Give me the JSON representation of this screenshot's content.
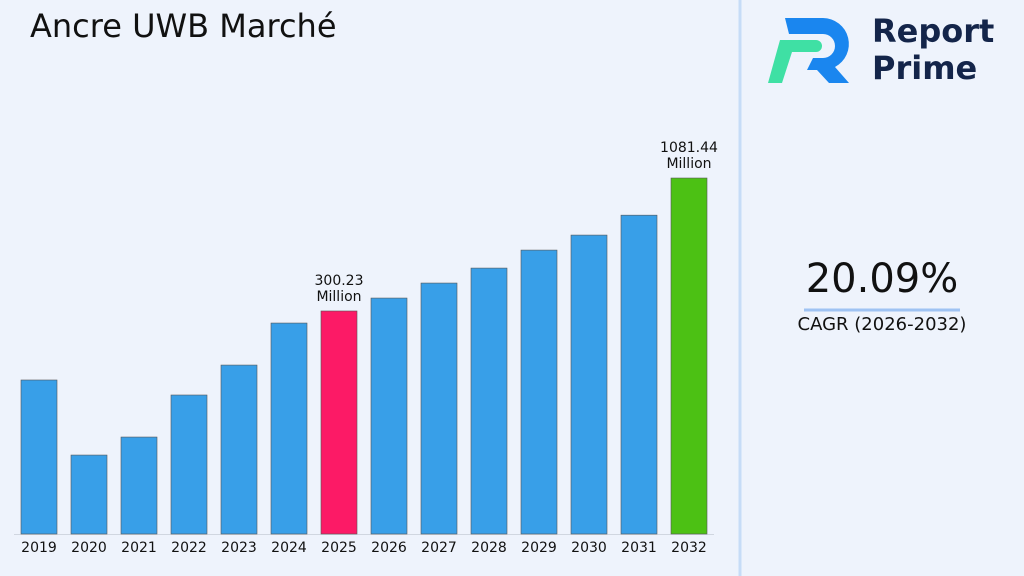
{
  "chart_data": {
    "type": "bar",
    "title": "Ancre UWB Marché",
    "categories": [
      "2019",
      "2020",
      "2021",
      "2022",
      "2023",
      "2024",
      "2025",
      "2026",
      "2027",
      "2028",
      "2029",
      "2030",
      "2031",
      "2032"
    ],
    "values": [
      154.4,
      74.9,
      89.1,
      133.6,
      178.3,
      267.3,
      300.23,
      340.1,
      393,
      454,
      540,
      624,
      756,
      1081.44
    ],
    "value_labels": [
      null,
      null,
      null,
      null,
      null,
      null,
      "300.23 Million",
      null,
      null,
      null,
      null,
      null,
      null,
      "1081.44 Million"
    ],
    "colors": [
      "#389fe8",
      "#389fe8",
      "#389fe8",
      "#389fe8",
      "#389fe8",
      "#389fe8",
      "#fc1a66",
      "#389fe8",
      "#389fe8",
      "#389fe8",
      "#389fe8",
      "#389fe8",
      "#389fe8",
      "#4cc114"
    ],
    "ylim": [
      35,
      1718
    ],
    "log": true,
    "grid": false
  },
  "side_panel": {
    "cagr_value": "20.09%",
    "cagr_label": "CAGR (2026-2032)",
    "logo_line1": "Report",
    "logo_line2": "Prime"
  }
}
